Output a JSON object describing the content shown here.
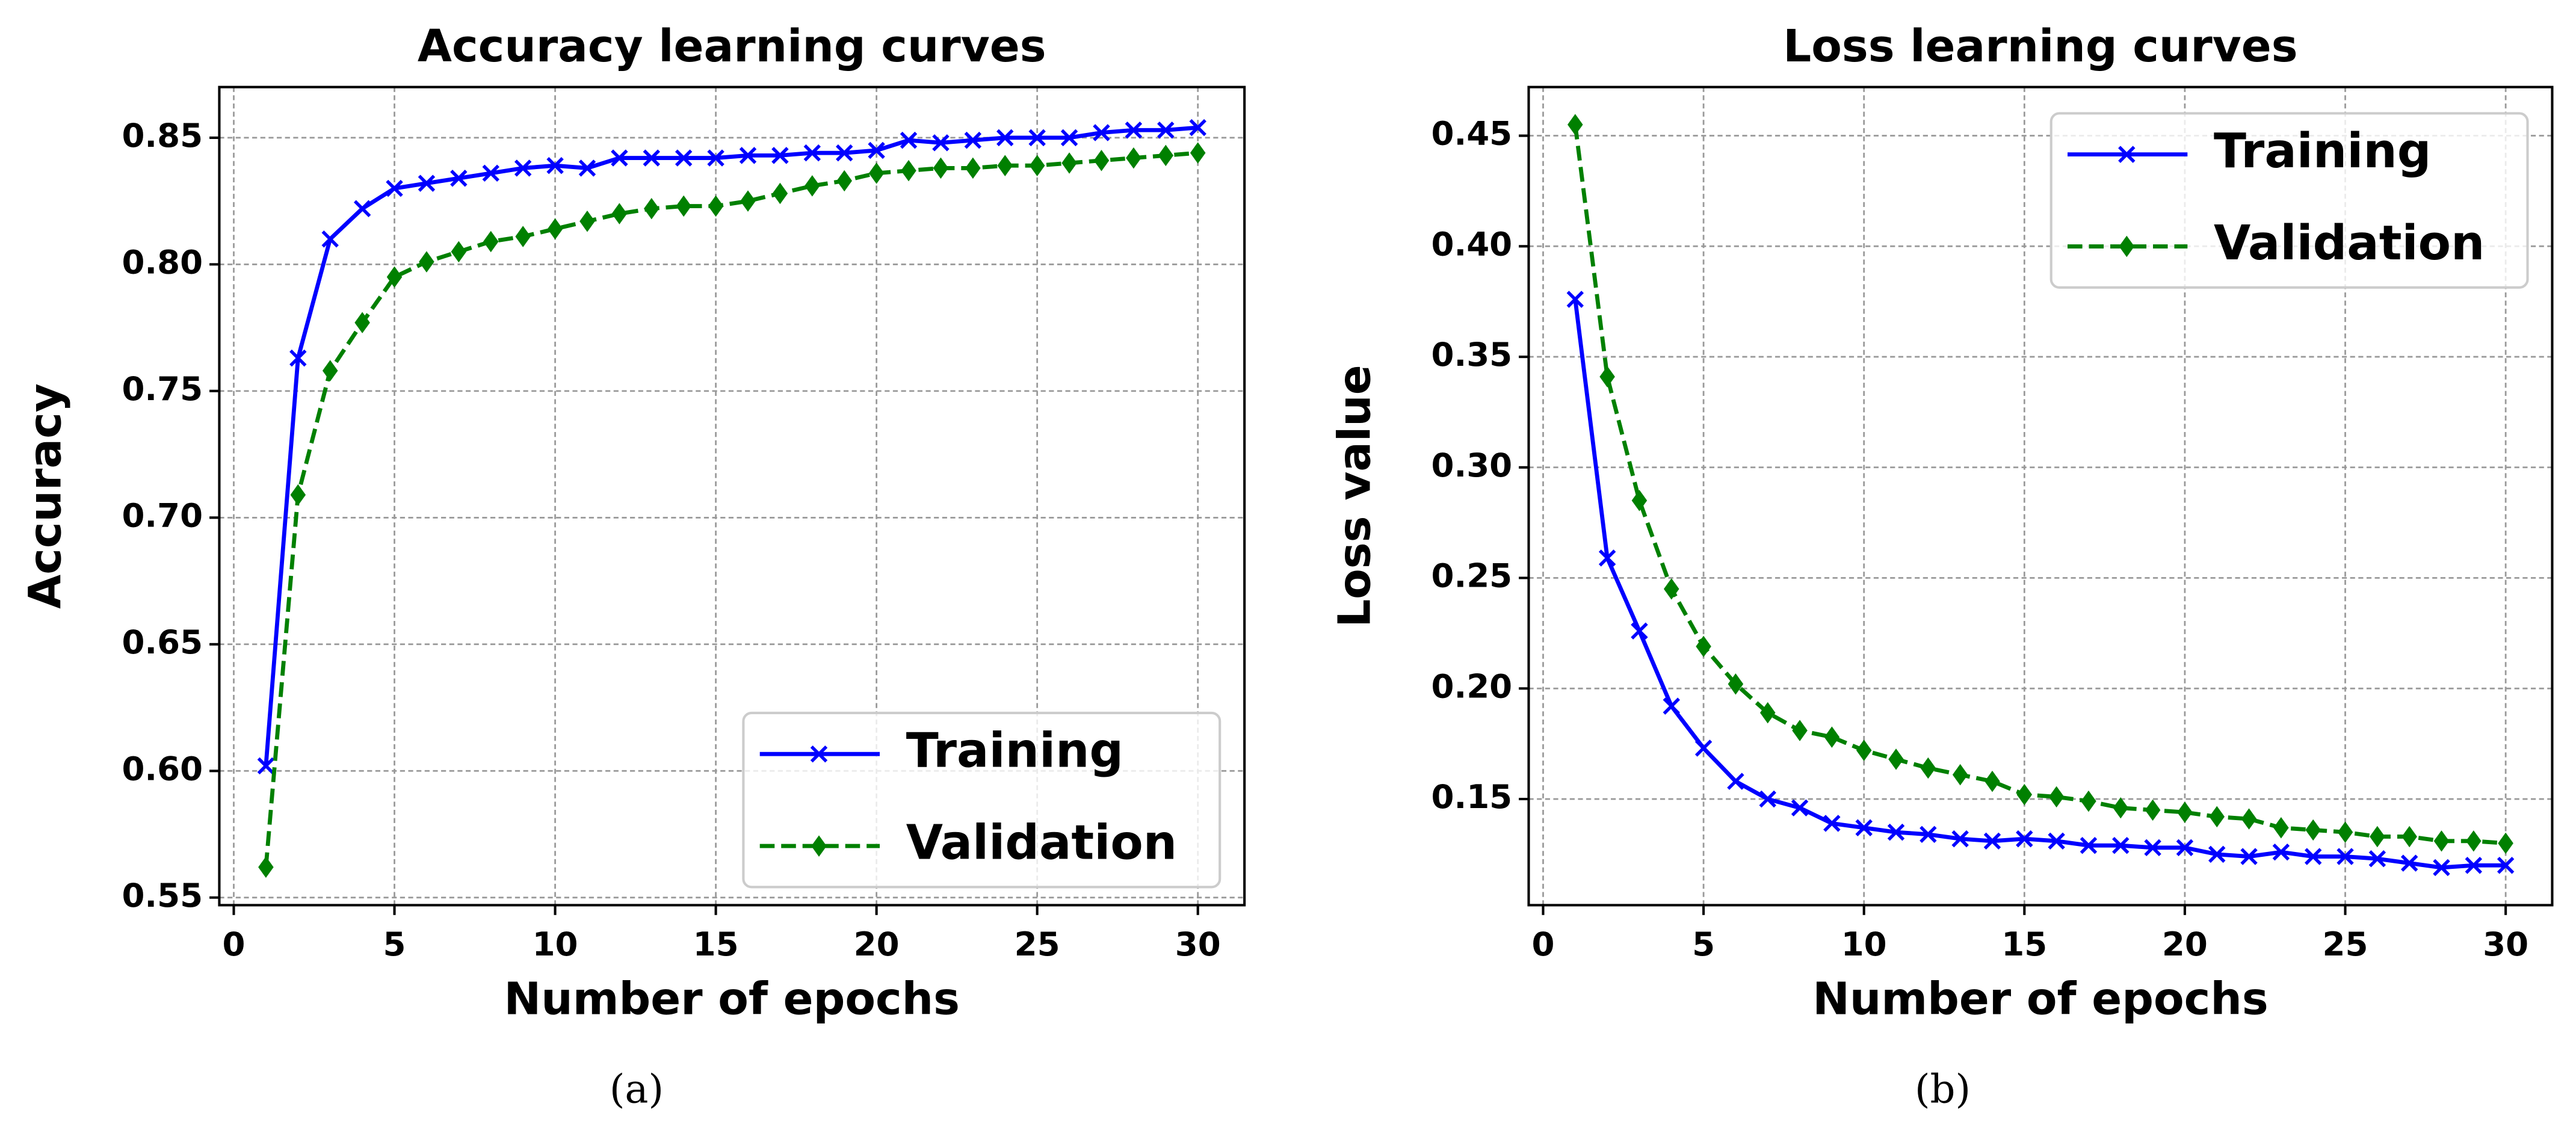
{
  "chart_data": [
    {
      "type": "line",
      "title": "Accuracy learning curves",
      "caption": "(a)",
      "xlabel": "Number of epochs",
      "ylabel": "Accuracy",
      "x": [
        1,
        2,
        3,
        4,
        5,
        6,
        7,
        8,
        9,
        10,
        11,
        12,
        13,
        14,
        15,
        16,
        17,
        18,
        19,
        20,
        21,
        22,
        23,
        24,
        25,
        26,
        27,
        28,
        29,
        30
      ],
      "xlim": [
        -0.45,
        31.45
      ],
      "xticks": [
        0,
        5,
        10,
        15,
        20,
        25,
        30
      ],
      "ylim": [
        0.547,
        0.87
      ],
      "yticks": [
        0.55,
        {
          "value": 0.6,
          "label": "0.60"
        },
        0.65,
        {
          "value": 0.7,
          "label": "0.70"
        },
        0.75,
        {
          "value": 0.8,
          "label": "0.80"
        },
        0.85
      ],
      "grid": true,
      "legend": "lower right",
      "series": [
        {
          "name": "Training",
          "color": "#0000ff",
          "marker": "x",
          "linestyle": "solid",
          "values": [
            0.602,
            0.763,
            0.81,
            0.822,
            0.83,
            0.832,
            0.834,
            0.836,
            0.838,
            0.839,
            0.838,
            0.842,
            0.842,
            0.842,
            0.842,
            0.843,
            0.843,
            0.844,
            0.844,
            0.845,
            0.849,
            0.848,
            0.849,
            0.85,
            0.85,
            0.85,
            0.852,
            0.853,
            0.853,
            0.854
          ]
        },
        {
          "name": "Validation",
          "color": "#008000",
          "marker": "D",
          "linestyle": "dashed",
          "values": [
            0.562,
            0.709,
            0.758,
            0.777,
            0.795,
            0.801,
            0.805,
            0.809,
            0.811,
            0.814,
            0.817,
            0.82,
            0.822,
            0.823,
            0.823,
            0.825,
            0.828,
            0.831,
            0.833,
            0.836,
            0.837,
            0.838,
            0.838,
            0.839,
            0.839,
            0.84,
            0.841,
            0.842,
            0.843,
            0.844
          ]
        }
      ]
    },
    {
      "type": "line",
      "title": "Loss learning curves",
      "caption": "(b)",
      "xlabel": "Number of epochs",
      "ylabel": "Loss value",
      "x": [
        1,
        2,
        3,
        4,
        5,
        6,
        7,
        8,
        9,
        10,
        11,
        12,
        13,
        14,
        15,
        16,
        17,
        18,
        19,
        20,
        21,
        22,
        23,
        24,
        25,
        26,
        27,
        28,
        29,
        30
      ],
      "xlim": [
        -0.45,
        31.45
      ],
      "xticks": [
        0,
        5,
        10,
        15,
        20,
        25,
        30
      ],
      "ylim": [
        0.102,
        0.472
      ],
      "yticks": [
        0.15,
        {
          "value": 0.2,
          "label": "0.20"
        },
        0.25,
        {
          "value": 0.3,
          "label": "0.30"
        },
        0.35,
        {
          "value": 0.4,
          "label": "0.40"
        },
        0.45
      ],
      "grid": true,
      "legend": "upper right",
      "series": [
        {
          "name": "Training",
          "color": "#0000ff",
          "marker": "x",
          "linestyle": "solid",
          "values": [
            0.376,
            0.259,
            0.226,
            0.192,
            0.173,
            0.158,
            0.15,
            0.146,
            0.139,
            0.137,
            0.135,
            0.134,
            0.132,
            0.131,
            0.132,
            0.131,
            0.129,
            0.129,
            0.128,
            0.128,
            0.125,
            0.124,
            0.126,
            0.124,
            0.124,
            0.123,
            0.121,
            0.119,
            0.12,
            0.12
          ]
        },
        {
          "name": "Validation",
          "color": "#008000",
          "marker": "D",
          "linestyle": "dashed",
          "values": [
            0.455,
            0.341,
            0.285,
            0.245,
            0.219,
            0.202,
            0.189,
            0.181,
            0.178,
            0.172,
            0.168,
            0.164,
            0.161,
            0.158,
            0.152,
            0.151,
            0.149,
            0.146,
            0.145,
            0.144,
            0.142,
            0.141,
            0.137,
            0.136,
            0.135,
            0.133,
            0.133,
            0.131,
            0.131,
            0.13
          ]
        }
      ]
    }
  ]
}
